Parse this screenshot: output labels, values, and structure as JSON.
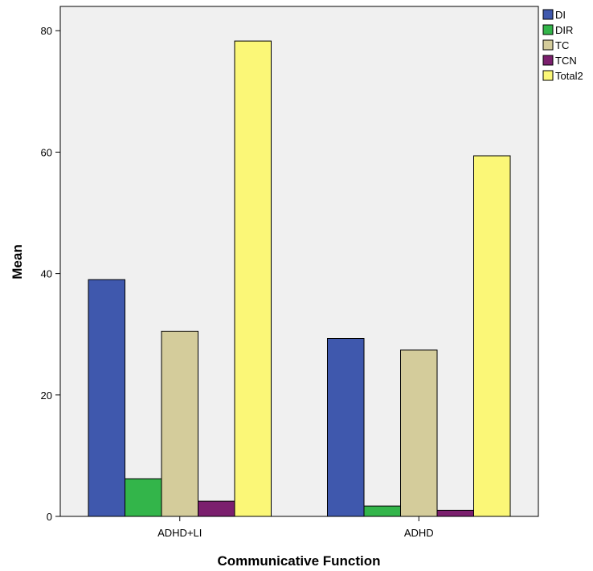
{
  "chart_data": {
    "type": "bar",
    "title": "",
    "xlabel": "Communicative Function",
    "ylabel": "Mean",
    "categories": [
      "ADHD+LI",
      "ADHD"
    ],
    "series": [
      {
        "name": "DI",
        "color": "#3f58ad",
        "values": [
          39.0,
          29.3
        ]
      },
      {
        "name": "DIR",
        "color": "#33b54a",
        "values": [
          6.2,
          1.7
        ]
      },
      {
        "name": "TC",
        "color": "#d4cc9b",
        "values": [
          30.5,
          27.4
        ]
      },
      {
        "name": "TCN",
        "color": "#7b1f6e",
        "values": [
          2.5,
          1.0
        ]
      },
      {
        "name": "Total2",
        "color": "#fbf777",
        "values": [
          78.3,
          59.4
        ]
      }
    ],
    "ylim": [
      0,
      84
    ],
    "yticks": [
      0,
      20,
      40,
      60,
      80
    ],
    "grid": false,
    "legend_position": "top-right",
    "plot_background": "#f0f0f0"
  }
}
